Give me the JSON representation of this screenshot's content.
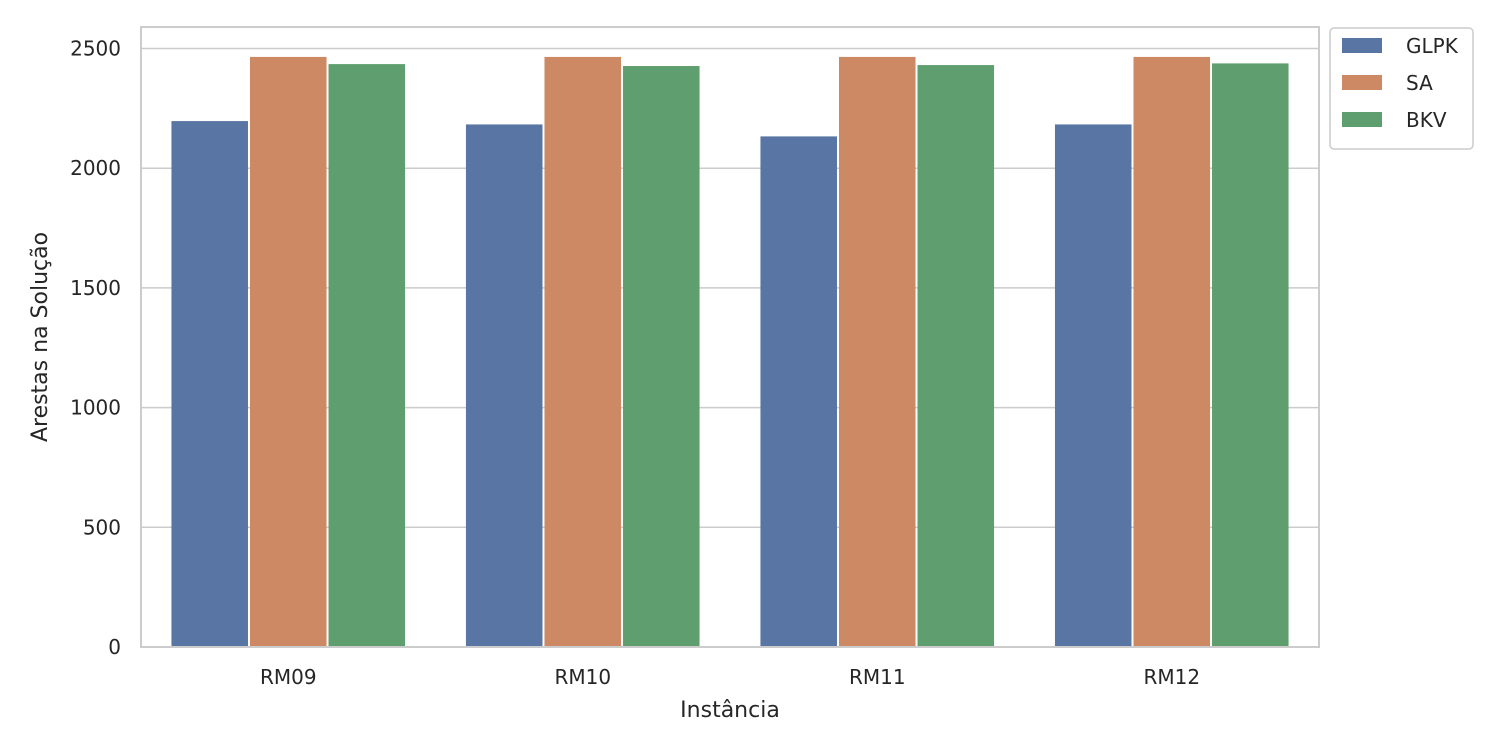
{
  "chart_data": {
    "type": "bar",
    "categories": [
      "RM09",
      "RM10",
      "RM11",
      "RM12"
    ],
    "series": [
      {
        "name": "GLPK",
        "values": [
          2197,
          2183,
          2133,
          2183
        ],
        "color": "#5875a4"
      },
      {
        "name": "SA",
        "values": [
          2465,
          2465,
          2465,
          2465
        ],
        "color": "#cc8963"
      },
      {
        "name": "BKV",
        "values": [
          2435,
          2427,
          2431,
          2438
        ],
        "color": "#5f9e6e"
      }
    ],
    "title": "",
    "xlabel": "Instância",
    "ylabel": "Arestas na Solução",
    "ylim": [
      0,
      2590
    ],
    "yticks": [
      0,
      500,
      1000,
      1500,
      2000,
      2500
    ],
    "grid": "horizontal",
    "legend_position": "outside-top-right"
  }
}
